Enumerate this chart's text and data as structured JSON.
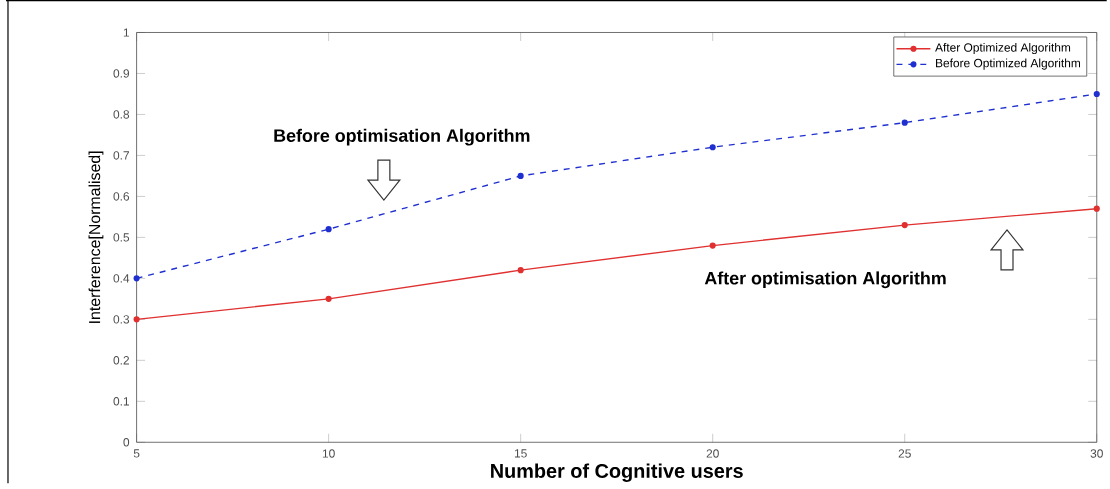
{
  "chart_data": {
    "type": "line",
    "xlabel": "Number of Cognitive users",
    "ylabel": "Interference[Normalised]",
    "x": [
      5,
      10,
      15,
      20,
      25,
      30
    ],
    "series": [
      {
        "name": "After Optimized Algorithm",
        "color": "#e03030",
        "line_style": "solid",
        "values": [
          0.3,
          0.35,
          0.42,
          0.48,
          0.53,
          0.57
        ]
      },
      {
        "name": "Before Optimized  Algorithm",
        "color": "#2030d0",
        "line_style": "dashed",
        "values": [
          0.4,
          0.52,
          0.65,
          0.72,
          0.78,
          0.85
        ]
      }
    ],
    "xlim": [
      5,
      30
    ],
    "xticks": [
      5,
      10,
      15,
      20,
      25,
      30
    ],
    "ylim": [
      0,
      1
    ],
    "yticks": [
      0,
      0.1,
      0.2,
      0.3,
      0.4,
      0.5,
      0.6,
      0.7,
      0.8,
      0.9,
      1
    ],
    "marker": "circle",
    "legend": "top right",
    "grid": false,
    "annotations": [
      "Before optimisation Algorithm",
      "After optimisation Algorithm"
    ]
  }
}
